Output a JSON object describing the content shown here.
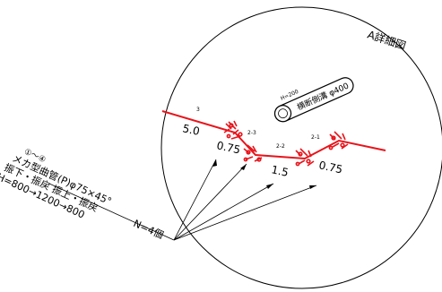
{
  "detail_title": "A詳細図",
  "culvert": {
    "label": "横断側溝 φ400",
    "height_label": "H=200"
  },
  "segments": [
    {
      "index": "3",
      "slope": "5.0"
    },
    {
      "index": "2-3",
      "slope": "0.75"
    },
    {
      "index": "2-2",
      "slope": "1.5"
    },
    {
      "index": "2-1",
      "slope": "0.75"
    }
  ],
  "note": {
    "range": "①～④",
    "item": "メカ型曲管(P)φ75×45°",
    "operation": "振下・振戻 振上・振戻",
    "height": "H=800→1200→800",
    "count": "N=4個"
  },
  "colors": {
    "pipe": "#e8141b",
    "line": "#000000"
  }
}
